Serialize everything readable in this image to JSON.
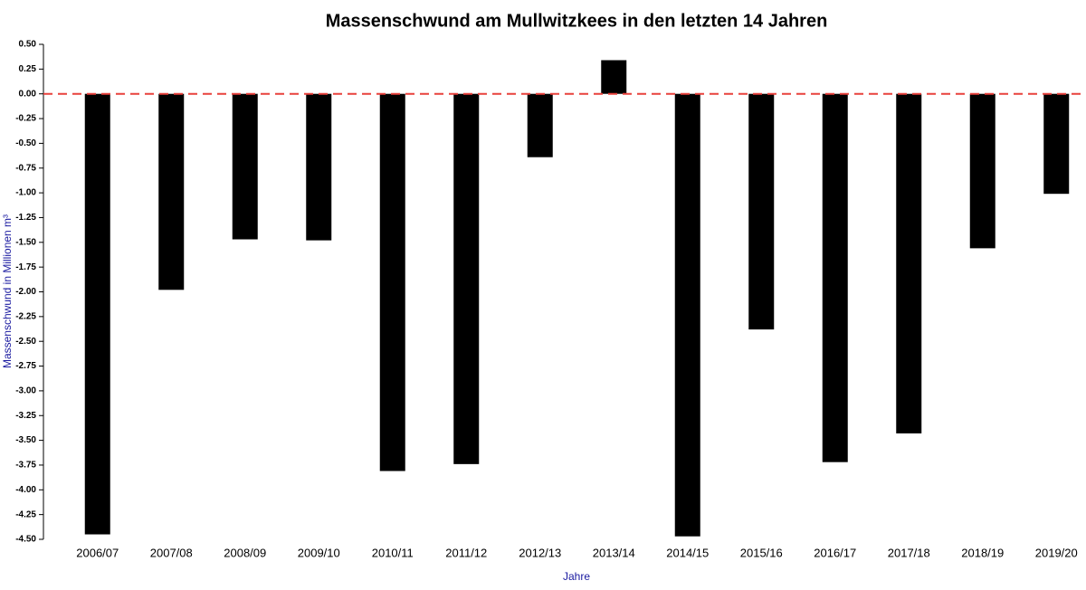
{
  "chart_data": {
    "type": "bar",
    "title": "Massenschwund am Mullwitzkees in den letzten 14 Jahren",
    "x_label": "Jahre",
    "y_label": "Massenschwund in Millionen m³",
    "categories": [
      "2006/07",
      "2007/08",
      "2008/09",
      "2009/10",
      "2010/11",
      "2011/12",
      "2012/13",
      "2013/14",
      "2014/15",
      "2015/16",
      "2016/17",
      "2017/18",
      "2018/19",
      "2019/20"
    ],
    "values": [
      -4.45,
      -1.98,
      -1.47,
      -1.48,
      -3.81,
      -3.74,
      -0.64,
      0.34,
      -4.47,
      -2.38,
      -3.72,
      -3.43,
      -1.56,
      -1.01
    ],
    "color": "#000000",
    "axis_label_color": "#1a1aa0",
    "zero_line": true,
    "zero_line_color": "#e8413c",
    "ylim": [
      -4.5,
      0.5
    ],
    "yticks": [
      {
        "value": 0.5,
        "label": "0.50"
      },
      {
        "value": 0.25,
        "label": "0.25"
      },
      {
        "value": 0,
        "label": "0.00"
      },
      {
        "value": -0.25,
        "label": "-0.25"
      },
      {
        "value": -0.5,
        "label": "-0.50"
      },
      {
        "value": -0.75,
        "label": "-0.75"
      },
      {
        "value": -1,
        "label": "-1.00"
      },
      {
        "value": -1.25,
        "label": "-1.25"
      },
      {
        "value": -1.5,
        "label": "-1.50"
      },
      {
        "value": -1.75,
        "label": "-1.75"
      },
      {
        "value": -2,
        "label": "-2.00"
      },
      {
        "value": -2.25,
        "label": "-2.25"
      },
      {
        "value": -2.5,
        "label": "-2.50"
      },
      {
        "value": -2.75,
        "label": "-2.75"
      },
      {
        "value": -3,
        "label": "-3.00"
      },
      {
        "value": -3.25,
        "label": "-3.25"
      },
      {
        "value": -3.5,
        "label": "-3.50"
      },
      {
        "value": -3.75,
        "label": "-3.75"
      },
      {
        "value": -4,
        "label": "-4.00"
      },
      {
        "value": -4.25,
        "label": "-4.25"
      },
      {
        "value": -4.5,
        "label": "-4.50"
      }
    ]
  }
}
